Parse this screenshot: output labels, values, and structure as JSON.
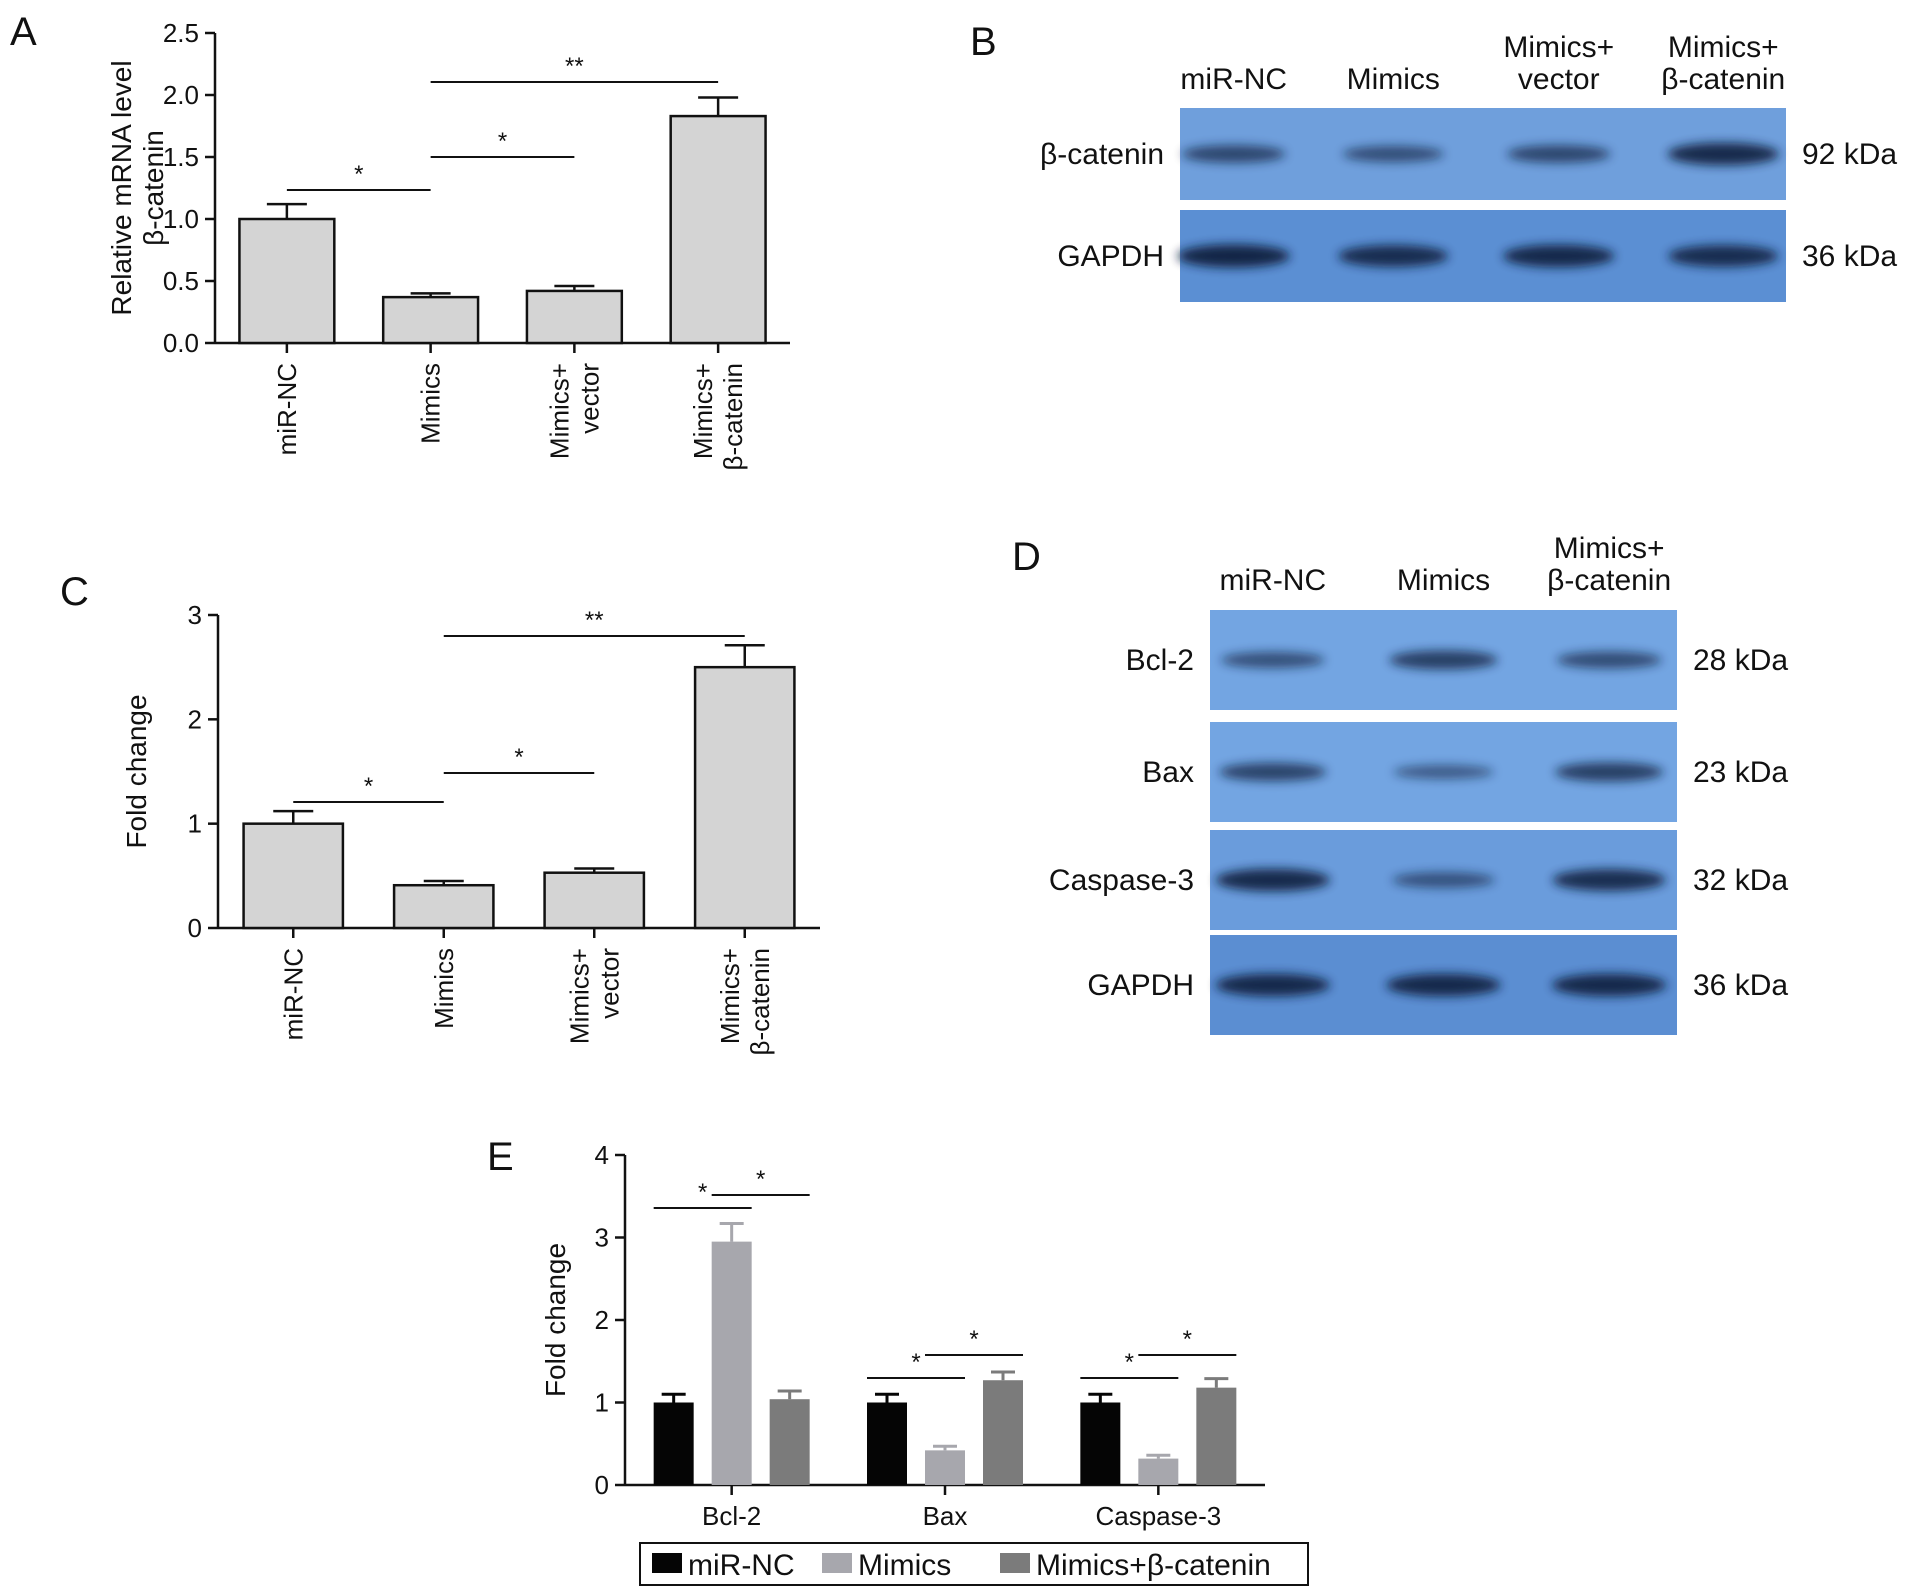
{
  "chart_data": [
    {
      "panel": "A",
      "type": "bar",
      "categories": [
        [
          "miR-NC"
        ],
        [
          "Mimics"
        ],
        [
          "Mimics+",
          "vector"
        ],
        [
          "Mimics+",
          "β-catenin"
        ]
      ],
      "values": [
        1.0,
        0.37,
        0.42,
        1.83
      ],
      "errors": [
        0.12,
        0.03,
        0.04,
        0.15
      ],
      "ylabel": [
        "Relative mRNA level",
        "β-catenin"
      ],
      "ylim": [
        0,
        2.5
      ],
      "yticks": [
        "0.0",
        "0.5",
        "1.0",
        "1.5",
        "2.0",
        "2.5"
      ],
      "significance": [
        {
          "from": 0,
          "to": 1,
          "label": "*"
        },
        {
          "from": 1,
          "to": 2,
          "label": "*"
        },
        {
          "from": 1,
          "to": 3,
          "label": "**"
        }
      ]
    },
    {
      "panel": "C",
      "type": "bar",
      "categories": [
        [
          "miR-NC"
        ],
        [
          "Mimics"
        ],
        [
          "Mimics+",
          "vector"
        ],
        [
          "Mimics+",
          "β-catenin"
        ]
      ],
      "values": [
        1.0,
        0.41,
        0.53,
        2.5
      ],
      "errors": [
        0.12,
        0.04,
        0.04,
        0.21
      ],
      "ylabel": [
        "Fold change"
      ],
      "ylim": [
        0,
        3
      ],
      "yticks": [
        "0",
        "1",
        "2",
        "3"
      ],
      "significance": [
        {
          "from": 0,
          "to": 1,
          "label": "*"
        },
        {
          "from": 1,
          "to": 2,
          "label": "*"
        },
        {
          "from": 1,
          "to": 3,
          "label": "**"
        }
      ]
    },
    {
      "panel": "E",
      "type": "bar",
      "categories": [
        "Bcl-2",
        "Bax",
        "Caspase-3"
      ],
      "series": [
        {
          "name": "miR-NC",
          "values": [
            1.0,
            1.0,
            1.0
          ],
          "errors": [
            0.1,
            0.1,
            0.1
          ],
          "color": "#050505"
        },
        {
          "name": "Mimics",
          "values": [
            2.95,
            0.42,
            0.32
          ],
          "errors": [
            0.22,
            0.05,
            0.04
          ],
          "color": "#a7a7ad"
        },
        {
          "name": "Mimics+β-catenin",
          "values": [
            1.04,
            1.27,
            1.18
          ],
          "errors": [
            0.1,
            0.1,
            0.11
          ],
          "color": "#7b7b7b"
        }
      ],
      "ylabel": [
        "Fold change"
      ],
      "ylim": [
        0,
        4
      ],
      "yticks": [
        "0",
        "1",
        "2",
        "3",
        "4"
      ],
      "legend": "bottom",
      "significance": [
        {
          "group": 0,
          "from": 0,
          "to": 1,
          "label": "*"
        },
        {
          "group": 0,
          "from": 1,
          "to": 2,
          "label": "*"
        },
        {
          "group": 1,
          "from": 0,
          "to": 1,
          "label": "*"
        },
        {
          "group": 1,
          "from": 1,
          "to": 2,
          "label": "*"
        },
        {
          "group": 2,
          "from": 0,
          "to": 1,
          "label": "*"
        },
        {
          "group": 2,
          "from": 1,
          "to": 2,
          "label": "*"
        }
      ]
    }
  ],
  "blots": [
    {
      "panel": "B",
      "lanes": [
        [
          "miR-NC"
        ],
        [
          "Mimics"
        ],
        [
          "Mimics+",
          "vector"
        ],
        [
          "Mimics+",
          "β-catenin"
        ]
      ],
      "rows": [
        {
          "label": "β-catenin",
          "kda": "92 kDa",
          "intensity": [
            0.55,
            0.45,
            0.55,
            0.9
          ],
          "bg": "#6f9fdc"
        },
        {
          "label": "GAPDH",
          "kda": "36 kDa",
          "intensity": [
            0.95,
            0.85,
            0.9,
            0.85
          ],
          "bg": "#5b8fd3"
        }
      ]
    },
    {
      "panel": "D",
      "lanes": [
        [
          "miR-NC"
        ],
        [
          "Mimics"
        ],
        [
          "Mimics+",
          "β-catenin"
        ]
      ],
      "rows": [
        {
          "label": "Bcl-2",
          "kda": "28 kDa",
          "intensity": [
            0.45,
            0.65,
            0.5
          ],
          "bg": "#73a5e2"
        },
        {
          "label": "Bax",
          "kda": "23 kDa",
          "intensity": [
            0.6,
            0.3,
            0.65
          ],
          "bg": "#73a5e2"
        },
        {
          "label": "Caspase-3",
          "kda": "32 kDa",
          "intensity": [
            0.9,
            0.4,
            0.85
          ],
          "bg": "#6a9cdc"
        },
        {
          "label": "GAPDH",
          "kda": "36 kDa",
          "intensity": [
            0.9,
            0.9,
            0.9
          ],
          "bg": "#5b8ed2"
        }
      ]
    }
  ]
}
